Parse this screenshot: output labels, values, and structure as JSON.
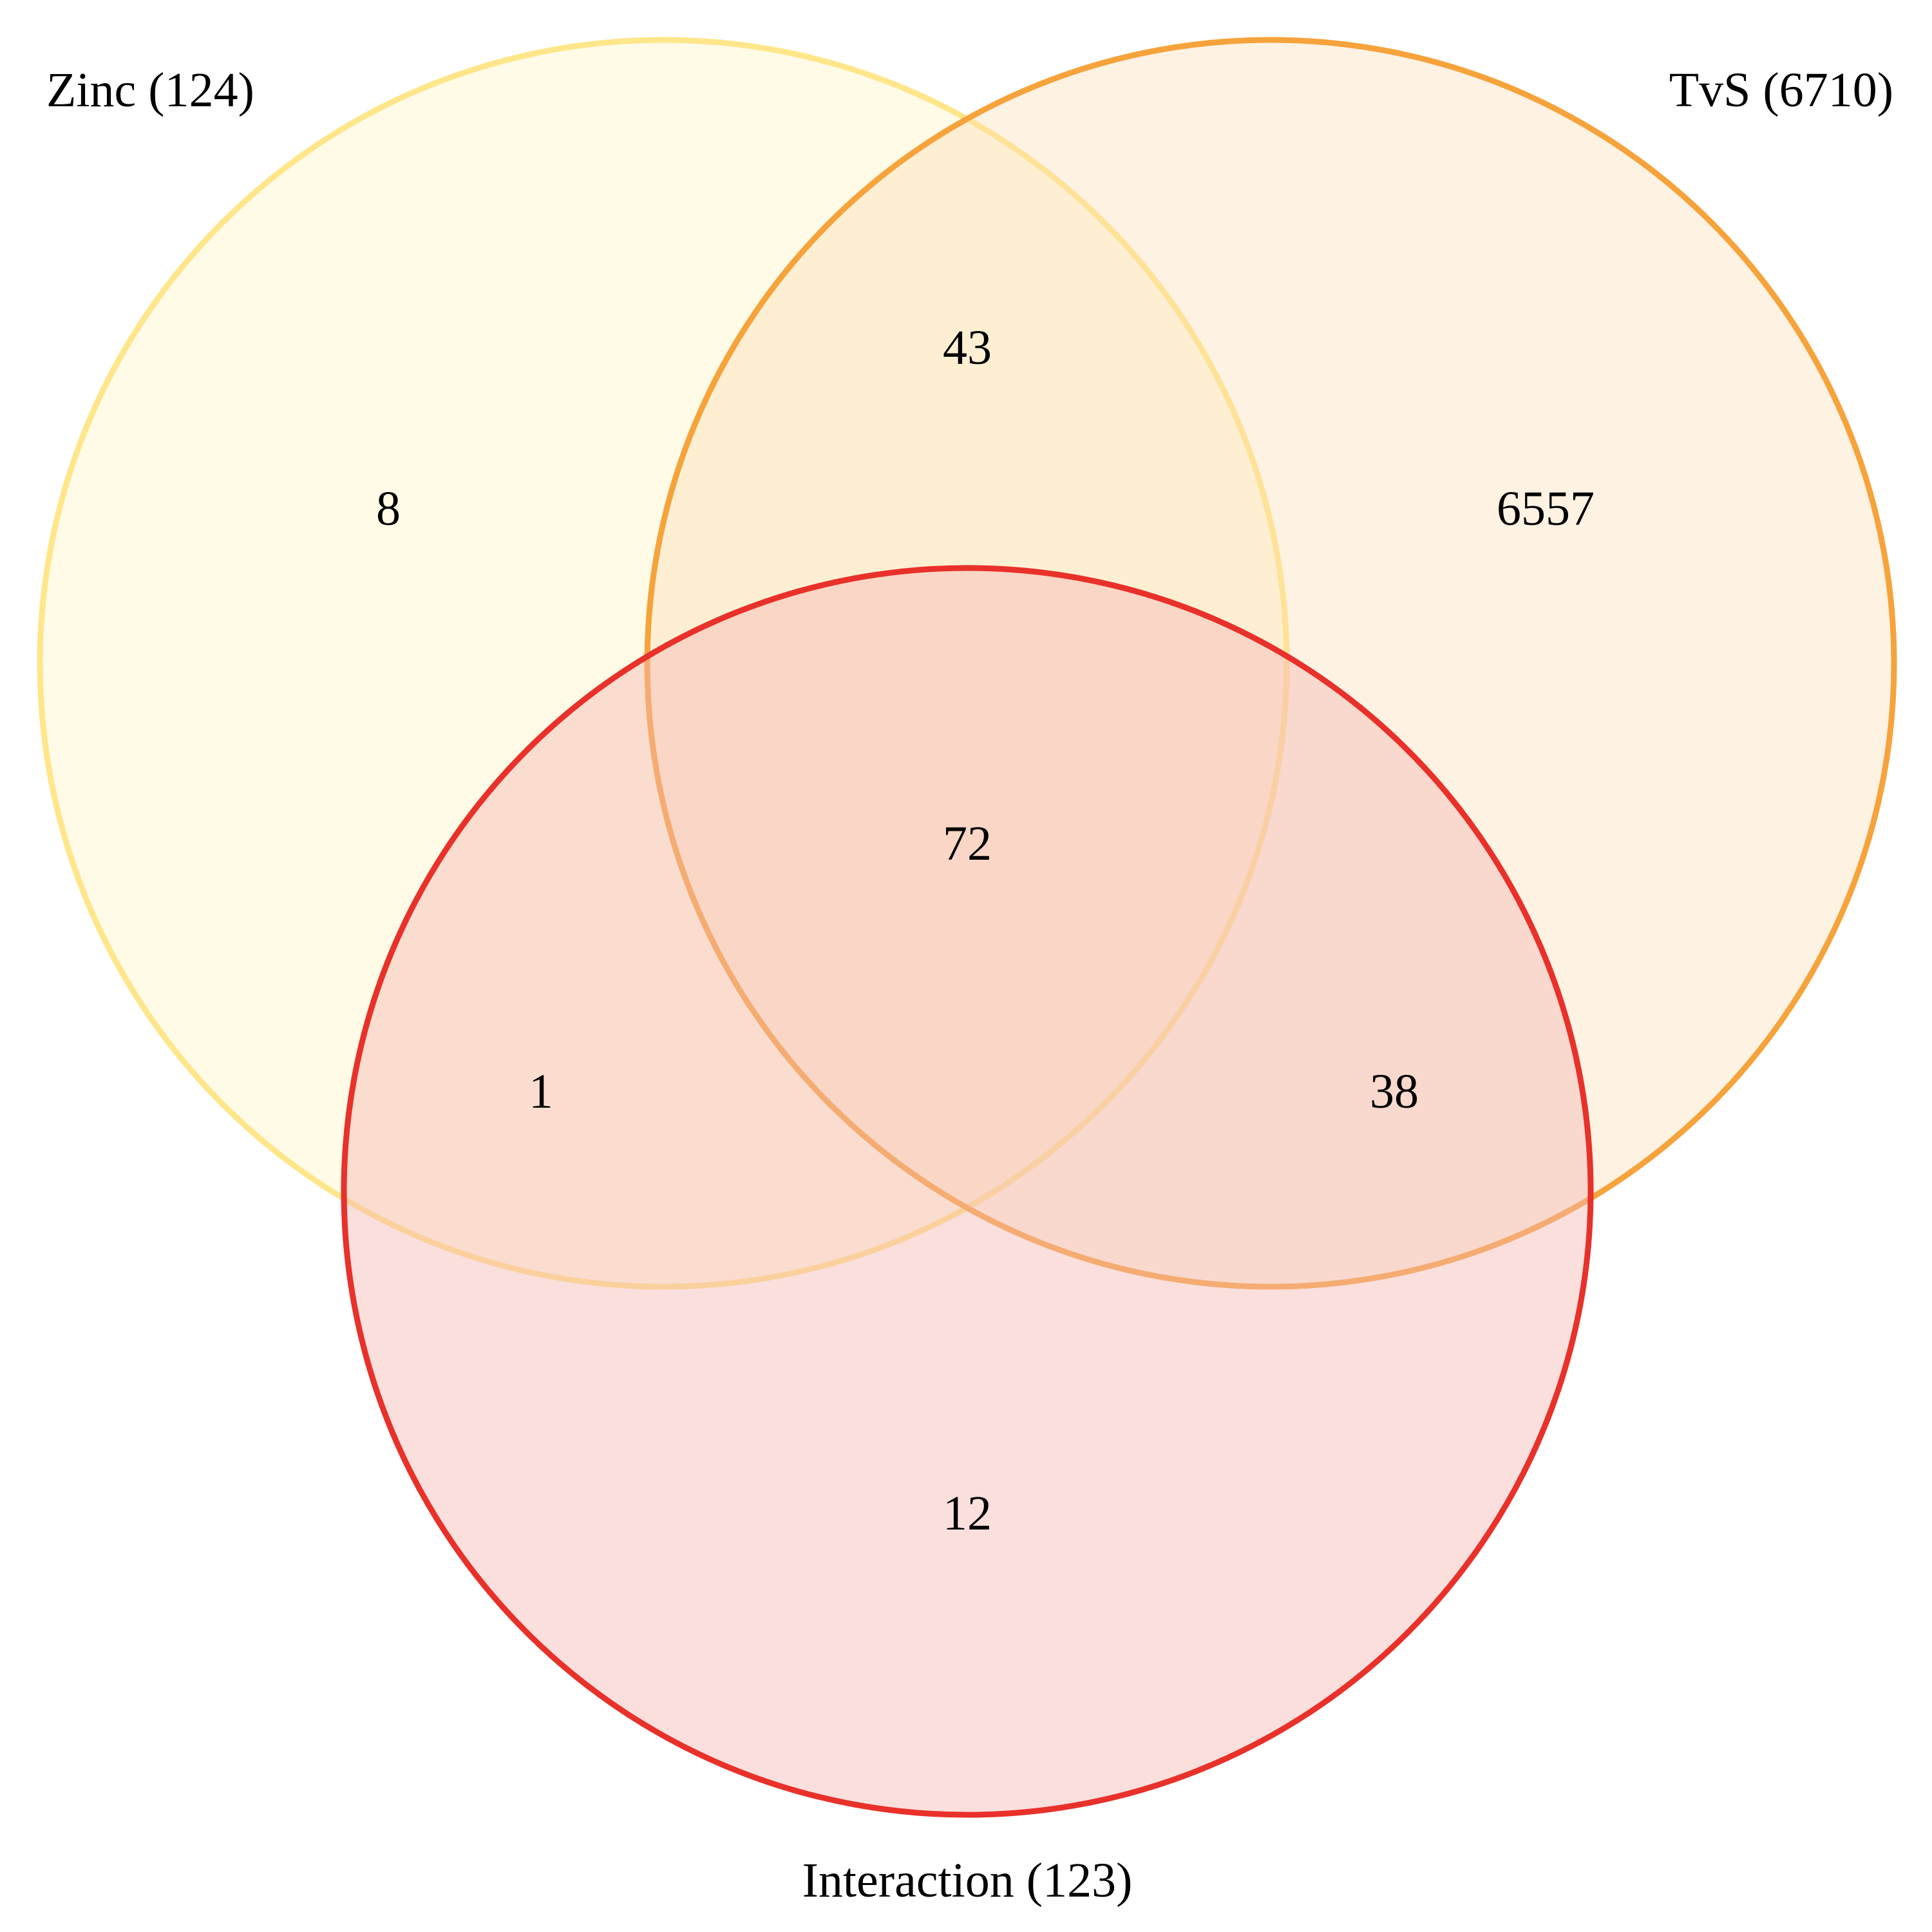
{
  "sets": [
    {
      "id": "zinc",
      "label": "Zinc (124)",
      "fill": "#FFF3B8",
      "stroke": "#FFE68A"
    },
    {
      "id": "tvs",
      "label": "TvS (6710)",
      "fill": "#FDDBB0",
      "stroke": "#F6A33C"
    },
    {
      "id": "interaction",
      "label": "Interaction (123)",
      "fill": "#F5B8B3",
      "stroke": "#E8312A"
    }
  ],
  "regions": {
    "zinc_only": "8",
    "tvs_only": "6557",
    "interaction_only": "12",
    "zinc_tvs": "43",
    "zinc_interaction": "1",
    "tvs_interaction": "38",
    "all_three": "72"
  }
}
